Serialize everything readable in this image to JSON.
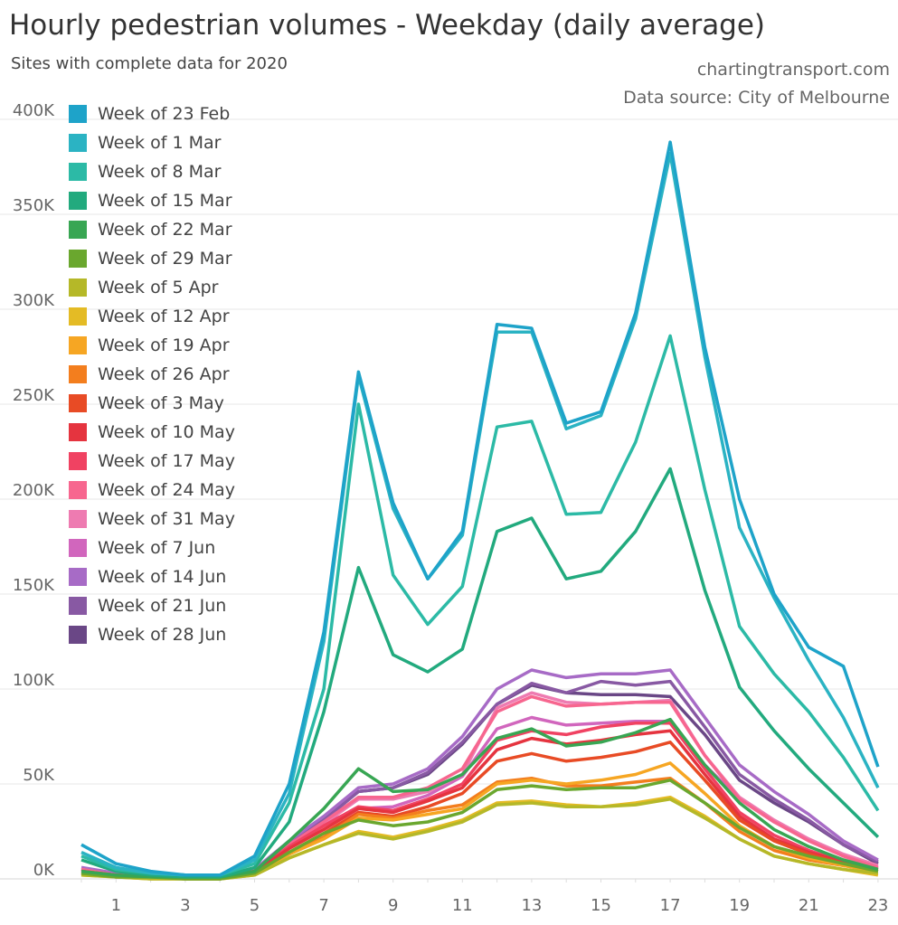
{
  "chart_data": {
    "type": "line",
    "title": "Hourly pedestrian volumes - Weekday (daily average)",
    "subtitle": "Sites with complete data for 2020",
    "credit": "chartingtransport.com",
    "source": "Data source: City of Melbourne",
    "xlabel": "",
    "ylabel": "",
    "x": [
      0,
      1,
      2,
      3,
      4,
      5,
      6,
      7,
      8,
      9,
      10,
      11,
      12,
      13,
      14,
      15,
      16,
      17,
      18,
      19,
      20,
      21,
      22,
      23
    ],
    "xticks": [
      "1",
      "3",
      "5",
      "7",
      "9",
      "11",
      "13",
      "15",
      "17",
      "19",
      "21",
      "23"
    ],
    "xtick_values": [
      1,
      3,
      5,
      7,
      9,
      11,
      13,
      15,
      17,
      19,
      21,
      23
    ],
    "ylim": [
      0,
      400000
    ],
    "yticks": [
      "0K",
      "50K",
      "100K",
      "150K",
      "200K",
      "250K",
      "300K",
      "350K",
      "400K"
    ],
    "ytick_values": [
      0,
      50000,
      100000,
      150000,
      200000,
      250000,
      300000,
      350000,
      400000
    ],
    "grid": true,
    "legend_position": "top-left",
    "units": "thousands",
    "series": [
      {
        "name": "Week of 23 Feb",
        "color": "#1ea3c9",
        "values": [
          18,
          8,
          4,
          2,
          2,
          12,
          50,
          130,
          267,
          198,
          158,
          183,
          292,
          290,
          240,
          246,
          298,
          388,
          280,
          200,
          150,
          122,
          112,
          59
        ]
      },
      {
        "name": "Week of 1 Mar",
        "color": "#2bb3c3",
        "values": [
          14,
          6,
          3,
          2,
          2,
          10,
          45,
          125,
          265,
          195,
          158,
          181,
          288,
          288,
          237,
          244,
          295,
          382,
          275,
          185,
          148,
          115,
          85,
          48
        ]
      },
      {
        "name": "Week of 8 Mar",
        "color": "#2cbaa6",
        "values": [
          12,
          5,
          3,
          2,
          2,
          8,
          40,
          100,
          250,
          160,
          134,
          154,
          238,
          241,
          192,
          193,
          230,
          286,
          205,
          133,
          108,
          88,
          64,
          36
        ]
      },
      {
        "name": "Week of 15 Mar",
        "color": "#22aa7e",
        "values": [
          10,
          4,
          2,
          1,
          1,
          6,
          30,
          88,
          164,
          118,
          109,
          121,
          183,
          190,
          158,
          162,
          183,
          216,
          152,
          101,
          78,
          58,
          40,
          22
        ]
      },
      {
        "name": "Week of 22 Mar",
        "color": "#38a653",
        "values": [
          4,
          2,
          1,
          1,
          1,
          4,
          20,
          37,
          58,
          46,
          47,
          55,
          74,
          79,
          70,
          72,
          77,
          84,
          60,
          40,
          26,
          17,
          10,
          5
        ]
      },
      {
        "name": "Week of 29 Mar",
        "color": "#6aa72e",
        "values": [
          3,
          1,
          1,
          0,
          0,
          3,
          14,
          24,
          31,
          28,
          30,
          35,
          47,
          49,
          47,
          48,
          48,
          52,
          40,
          27,
          17,
          12,
          8,
          4
        ]
      },
      {
        "name": "Week of 5 Apr",
        "color": "#b5b828",
        "values": [
          2,
          1,
          0,
          0,
          0,
          2,
          11,
          18,
          24,
          21,
          25,
          30,
          39,
          40,
          38,
          38,
          39,
          42,
          32,
          21,
          12,
          8,
          5,
          3
        ]
      },
      {
        "name": "Week of 12 Apr",
        "color": "#e4bb25",
        "values": [
          2,
          1,
          0,
          0,
          0,
          2,
          11,
          18,
          25,
          22,
          26,
          31,
          40,
          41,
          39,
          38,
          40,
          43,
          33,
          21,
          12,
          8,
          5,
          2
        ]
      },
      {
        "name": "Week of 19 Apr",
        "color": "#f6a623",
        "values": [
          3,
          1,
          1,
          0,
          0,
          3,
          13,
          21,
          32,
          31,
          34,
          37,
          50,
          52,
          50,
          52,
          55,
          61,
          45,
          28,
          17,
          11,
          7,
          4
        ]
      },
      {
        "name": "Week of 26 Apr",
        "color": "#f37e1e",
        "values": [
          3,
          1,
          1,
          0,
          0,
          3,
          13,
          22,
          34,
          32,
          36,
          39,
          51,
          53,
          49,
          49,
          51,
          53,
          40,
          25,
          15,
          10,
          7,
          4
        ]
      },
      {
        "name": "Week of 3 May",
        "color": "#e84b25",
        "values": [
          3,
          1,
          1,
          0,
          0,
          3,
          14,
          24,
          35,
          33,
          38,
          45,
          62,
          66,
          62,
          64,
          67,
          72,
          52,
          31,
          20,
          13,
          8,
          4
        ]
      },
      {
        "name": "Week of 10 May",
        "color": "#e5343f",
        "values": [
          4,
          2,
          1,
          1,
          1,
          4,
          16,
          26,
          37,
          35,
          41,
          48,
          68,
          74,
          71,
          73,
          76,
          78,
          55,
          33,
          21,
          14,
          9,
          5
        ]
      },
      {
        "name": "Week of 17 May",
        "color": "#f04262",
        "values": [
          4,
          2,
          1,
          1,
          1,
          4,
          17,
          28,
          38,
          36,
          42,
          50,
          73,
          78,
          76,
          80,
          82,
          82,
          58,
          35,
          23,
          15,
          9,
          5
        ]
      },
      {
        "name": "Week of 24 May",
        "color": "#f7668f",
        "values": [
          5,
          2,
          1,
          1,
          1,
          4,
          18,
          30,
          43,
          43,
          48,
          58,
          88,
          96,
          91,
          92,
          93,
          93,
          65,
          42,
          30,
          20,
          12,
          6
        ]
      },
      {
        "name": "Week of 31 May",
        "color": "#ee7bb1",
        "values": [
          5,
          2,
          1,
          1,
          1,
          4,
          18,
          29,
          42,
          42,
          46,
          55,
          90,
          98,
          93,
          92,
          93,
          94,
          65,
          43,
          31,
          21,
          13,
          7
        ]
      },
      {
        "name": "Week of 7 Jun",
        "color": "#d166bd",
        "values": [
          5,
          2,
          1,
          1,
          1,
          4,
          18,
          29,
          37,
          38,
          44,
          54,
          79,
          85,
          81,
          82,
          83,
          83,
          60,
          42,
          30,
          21,
          12,
          6
        ]
      },
      {
        "name": "Week of 14 Jun",
        "color": "#a76bc6",
        "values": [
          6,
          3,
          1,
          1,
          1,
          5,
          20,
          33,
          48,
          50,
          58,
          75,
          100,
          110,
          106,
          108,
          108,
          110,
          85,
          60,
          46,
          34,
          20,
          10
        ]
      },
      {
        "name": "Week of 21 Jun",
        "color": "#8859a3",
        "values": [
          5,
          2,
          1,
          1,
          1,
          4,
          19,
          31,
          46,
          48,
          56,
          72,
          92,
          103,
          98,
          104,
          102,
          104,
          80,
          55,
          42,
          31,
          18,
          9
        ]
      },
      {
        "name": "Week of 28 Jun",
        "color": "#6a4786",
        "values": [
          5,
          2,
          1,
          1,
          1,
          4,
          19,
          31,
          46,
          48,
          55,
          71,
          92,
          102,
          98,
          97,
          97,
          96,
          76,
          52,
          40,
          30,
          18,
          8
        ]
      }
    ]
  }
}
